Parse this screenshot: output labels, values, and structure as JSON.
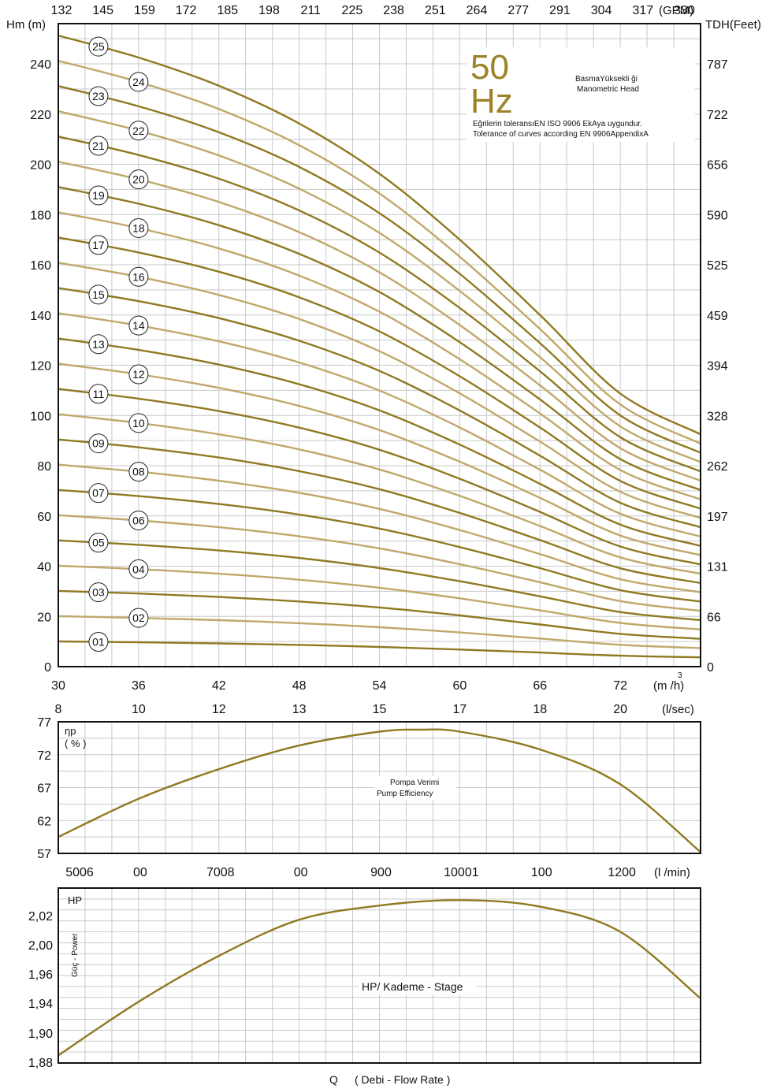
{
  "head_chart": {
    "top_axis_ticks": [
      "132",
      "145",
      "159",
      "172",
      "185",
      "198",
      "211",
      "225",
      "238",
      "251",
      "264",
      "277",
      "291",
      "304",
      "317",
      "330"
    ],
    "top_axis_unit": "(GPM)",
    "left_axis_label": "Hm (m)",
    "right_axis_label": "TDH(Feet)",
    "hz_number": "50",
    "hz_unit": "Hz",
    "legend_line1": "BasmaYüksekli ği",
    "legend_line2": "Manometric Head",
    "tolerance_line1": "Eğrilerin toleransıEN ISO 9906 EkAya uygundur.",
    "tolerance_line2": "Tolerance of curves according EN 9906AppendixA",
    "x_unit": "(m /h)",
    "x_unit_superscript": "3",
    "lsec_unit": "(l/sec)"
  },
  "efficiency_chart": {
    "y_label_1": "ηp",
    "y_label_2": "( % )",
    "caption_1": "Pompa Verimi",
    "caption_2": "Pump Efficiency",
    "x_ticks": [
      "5006",
      "00",
      "7008",
      "00",
      "900",
      "10001",
      "100",
      "1200"
    ],
    "x_unit": "(l /min)"
  },
  "power_chart": {
    "y_label": "HP",
    "side_label": "Güç - Power",
    "caption": "HP/ Kademe - Stage"
  },
  "footer": {
    "q_label": "Q",
    "flow_label": "( Debi - Flow Rate )"
  },
  "chart_data": [
    {
      "type": "line",
      "x_ticks": [
        30,
        36,
        42,
        48,
        54,
        60,
        66,
        72
      ],
      "xlim": [
        30,
        78
      ],
      "ylim": [
        0,
        256
      ],
      "y_ticks": [
        0,
        20,
        40,
        60,
        80,
        100,
        120,
        140,
        160,
        180,
        200,
        220,
        240
      ],
      "right_ticks": [
        "0",
        "66",
        "131",
        "197",
        "262",
        "328",
        "394",
        "459",
        "525",
        "590",
        "656",
        "722",
        "787"
      ],
      "lsec_ticks": [
        "8",
        "10",
        "12",
        "13",
        "15",
        "17",
        "18",
        "20"
      ],
      "grid": true,
      "stage_labels": [
        "01",
        "02",
        "03",
        "04",
        "05",
        "06",
        "07",
        "08",
        "09",
        "10",
        "11",
        "12",
        "13",
        "14",
        "15",
        "16",
        "17",
        "18",
        "19",
        "20",
        "21",
        "22",
        "23",
        "24",
        "25"
      ],
      "per_stage_head": {
        "x": [
          30,
          36,
          42,
          48,
          54,
          60,
          66,
          72,
          78
        ],
        "y": [
          10.05,
          9.7,
          9.25,
          8.65,
          7.85,
          6.8,
          5.6,
          4.35,
          3.7
        ]
      },
      "colors": {
        "odd_stage": "#8f7a22",
        "even_stage": "#bfa86a"
      }
    },
    {
      "type": "line",
      "x_ticks": [
        30,
        36,
        42,
        48,
        54,
        60,
        66,
        72
      ],
      "xlim": [
        30,
        78
      ],
      "ylim": [
        57,
        77
      ],
      "y_ticks": [
        57,
        62,
        67,
        72,
        77
      ],
      "grid": true,
      "series": [
        {
          "x": [
            30,
            36,
            42,
            48,
            54,
            57,
            60,
            66,
            72,
            78
          ],
          "y": [
            59.5,
            65.3,
            69.8,
            73.4,
            75.5,
            75.8,
            75.5,
            72.8,
            67.5,
            57.2
          ]
        }
      ],
      "color": "#8f7a22"
    },
    {
      "type": "line",
      "x_ticks": [
        30,
        36,
        42,
        48,
        54,
        60,
        66,
        72
      ],
      "xlim": [
        30,
        78
      ],
      "ylim": [
        1.88,
        2.04
      ],
      "y_ticks": [
        "1,88",
        "1,90",
        "1,94",
        "1,96",
        "2,00",
        "2,02"
      ],
      "grid": true,
      "series": [
        {
          "x": [
            30,
            36,
            42,
            48,
            54,
            60,
            66,
            72,
            78
          ],
          "y": [
            1.887,
            1.936,
            1.978,
            2.011,
            2.024,
            2.029,
            2.023,
            2.0,
            1.939
          ]
        }
      ],
      "color": "#8f7a22"
    }
  ]
}
